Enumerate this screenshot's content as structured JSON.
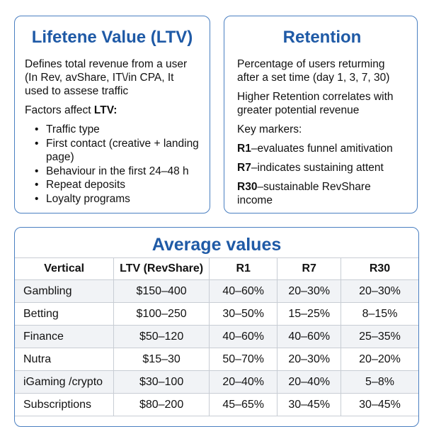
{
  "ltv": {
    "title": "Lifetene Value (LTV)",
    "definition": "Defines total revenue from a user (In Rev, avShare, IT\\/in CPA, It used to assese traffic",
    "factors_prefix": "Factors affect ",
    "factors_bold": "LTV:",
    "factors": [
      "Traffic type",
      "First contact (creative + landing page)",
      "Behaviour in the first 24–48 h",
      "Repeat deposits",
      "Loyalty programs"
    ]
  },
  "retention": {
    "title": "Retention",
    "definition": "Percentage of users returming after a set time (day 1, 3, 7, 30)",
    "correlation": "Higher Retention correlates with greater potential revenue",
    "key_markers_label": "Key markers:",
    "markers": [
      {
        "key": "R1",
        "text": "–evaluates funnel amitivation"
      },
      {
        "key": "R7",
        "text": "–indicates sustaining attent"
      },
      {
        "key": "R30",
        "text": "–sustainable  RevShare income"
      }
    ]
  },
  "averages": {
    "title": "Average values",
    "headers": [
      "Vertical",
      "LTV (RevShare)",
      "R1",
      "R7",
      "R30"
    ],
    "rows": [
      [
        "Gambling",
        "$150–400",
        "40–60%",
        "20–30%",
        "20–30%"
      ],
      [
        "Betting",
        "$100–250",
        "30–50%",
        "15–25%",
        "8–15%"
      ],
      [
        "Finance",
        "$50–120",
        "40–60%",
        "40–60%",
        "25–35%"
      ],
      [
        "Nutra",
        "$15–30",
        "50–70%",
        "20–30%",
        "20–20%"
      ],
      [
        "iGaming /crypto",
        "$30–100",
        "20–40%",
        "20–40%",
        "5–8%"
      ],
      [
        "Subscriptions",
        "$80–200",
        "45–65%",
        "30–45%",
        "30–45%"
      ]
    ]
  }
}
